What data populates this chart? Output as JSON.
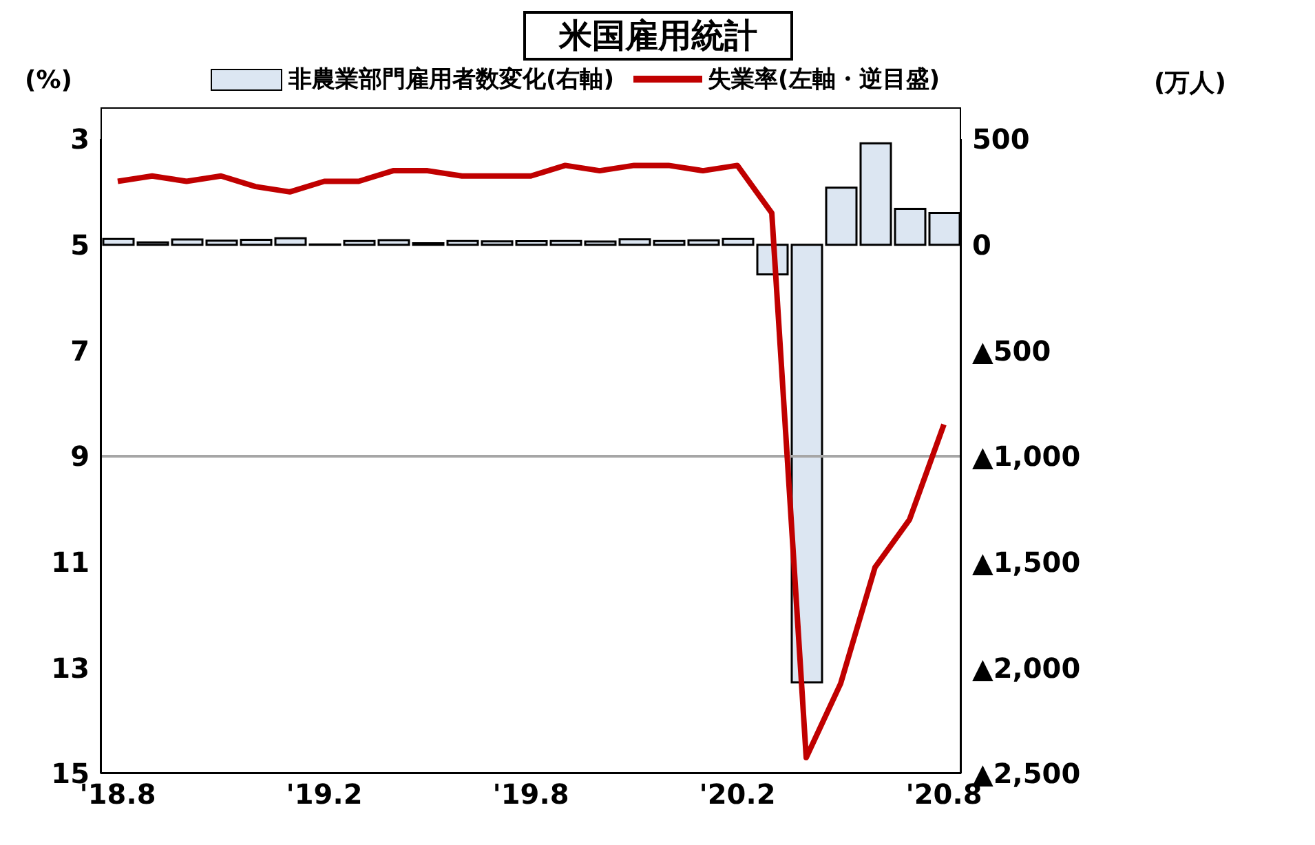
{
  "chart_data": {
    "type": "line",
    "title": "米国雇用統計",
    "ylabel": "(%)",
    "y2label": "(万人)",
    "categories": [
      "'18.8",
      null,
      null,
      null,
      null,
      null,
      "'19.2",
      null,
      null,
      null,
      null,
      null,
      "'19.8",
      null,
      null,
      null,
      null,
      null,
      "'20.2",
      null,
      null,
      null,
      null,
      null,
      "'20.8"
    ],
    "series": [
      {
        "name": "非農業部門雇用者数変化(右軸)",
        "type": "bar",
        "axis": "y2",
        "color": "#dce6f2",
        "values": [
          27,
          11,
          25,
          19,
          23,
          31,
          1,
          18,
          22,
          7,
          18,
          16,
          17,
          18,
          15,
          26,
          18,
          21,
          27,
          -140,
          -2070,
          270,
          480,
          170,
          150
        ]
      },
      {
        "name": "失業率(左軸・逆目盛)",
        "color": "#c00000",
        "values": [
          3.8,
          3.7,
          3.8,
          3.7,
          3.9,
          4.0,
          3.8,
          3.8,
          3.6,
          3.6,
          3.7,
          3.7,
          3.7,
          3.5,
          3.6,
          3.5,
          3.5,
          3.6,
          3.5,
          4.4,
          14.7,
          13.3,
          11.1,
          10.2,
          8.4
        ]
      }
    ],
    "ylim": [
      15,
      3
    ],
    "yticks": [
      3,
      5,
      7,
      9,
      11,
      13,
      15
    ],
    "y2lim": [
      -2500,
      500
    ],
    "y2ticks": [
      500,
      0,
      {
        "value": -500,
        "label": "▲500"
      },
      {
        "value": -1000,
        "label": "▲1,000"
      },
      {
        "value": -1500,
        "label": "▲1,500"
      },
      {
        "value": -2000,
        "label": "▲2,000"
      },
      {
        "value": -2500,
        "label": "▲2,500"
      }
    ],
    "ref_lines": [
      {
        "axis": "y",
        "value": 9,
        "color": "#a6a6a6"
      }
    ],
    "legend": "top"
  }
}
